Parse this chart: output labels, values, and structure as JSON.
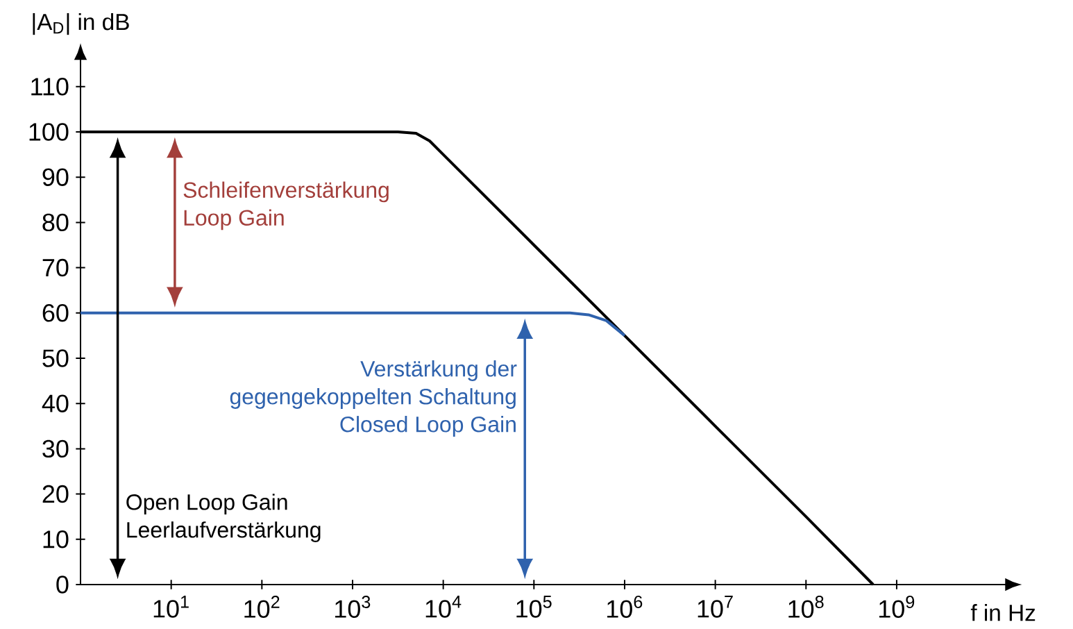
{
  "chart_data": {
    "type": "line",
    "xlabel": "f in Hz",
    "ylabel": "|A$_{D}$| in dB",
    "log": "x",
    "xlim": [
      1,
      15000000000
    ],
    "ylim": [
      0,
      115.5
    ],
    "xticks": [
      {
        "value": 10,
        "label": "10$^{1}$"
      },
      {
        "value": 100,
        "label": "10$^{2}$"
      },
      {
        "value": 1000,
        "label": "10$^{3}$"
      },
      {
        "value": 10000,
        "label": "10$^{4}$"
      },
      {
        "value": 100000,
        "label": "10$^{5}$"
      },
      {
        "value": 1000000,
        "label": "10$^{6}$"
      },
      {
        "value": 10000000,
        "label": "10$^{7}$"
      },
      {
        "value": 100000000,
        "label": "10$^{8}$"
      },
      {
        "value": 1000000000,
        "label": "10$^{9}$"
      }
    ],
    "yticks": [
      0,
      10,
      20,
      30,
      40,
      50,
      60,
      70,
      80,
      90,
      100,
      110
    ],
    "marker": "none",
    "line_style": "solid",
    "series": [
      {
        "color": "#000000",
        "x": [
          1,
          3162,
          5012,
          7079,
          10000,
          100000,
          1000000,
          10000000,
          100000000,
          550000000
        ],
        "values": [
          100,
          100,
          99.7,
          98,
          95,
          75,
          55,
          35,
          15,
          0
        ]
      },
      {
        "color": "#2f62ad",
        "x": [
          1,
          250000,
          400000,
          630000,
          1000000
        ],
        "values": [
          60,
          60,
          59.6,
          58.3,
          55
        ]
      }
    ],
    "annotations": [
      "Open Loop Gain",
      "Leerlaufverstärkung",
      "Schleifenverstärkung",
      "Loop Gain",
      "Verstärkung der",
      "gegengekoppelten Schaltung",
      "Closed Loop Gain"
    ]
  }
}
